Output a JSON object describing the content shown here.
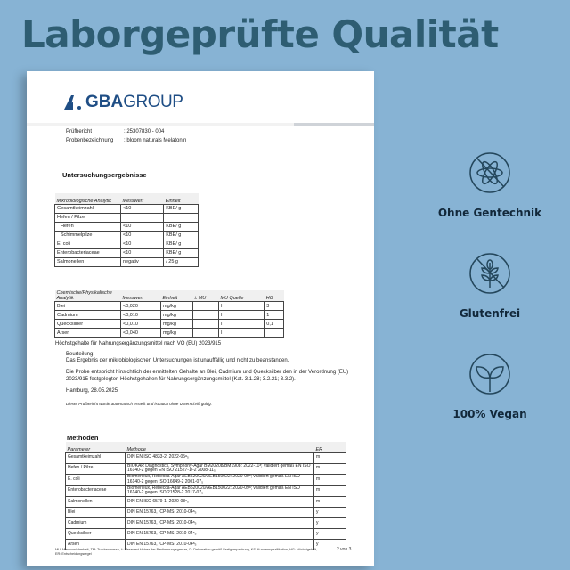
{
  "title": "Laborgeprüfte Qualität",
  "document": {
    "logo": {
      "bold": "GBA",
      "rest": "GROUP"
    },
    "pruefbericht_label": "Prüfbericht",
    "pruefbericht_value": ": 25307830 - 004",
    "probe_label": "Probenbezeichnung",
    "probe_value": ": bloom naturals Melatonin",
    "section_title": "Untersuchungsergebnisse",
    "micro_table": {
      "headers": [
        "Mikrobiologische Analytik",
        "Messwert",
        "Einheit"
      ],
      "rows": [
        [
          "Gesamtkeimzahl",
          "<10",
          "KBE/ g"
        ],
        [
          "Hefen / Pilze",
          "",
          ""
        ],
        [
          "  Hefen",
          "<10",
          "KBE/ g"
        ],
        [
          "  Schimmelpilze",
          "<10",
          "KBE/ g"
        ],
        [
          "E. coli",
          "<10",
          "KBE/ g"
        ],
        [
          "Enterobacteriaceae",
          "<10",
          "KBE/ g"
        ],
        [
          "Salmonellen",
          "negativ",
          "/ 25 g"
        ]
      ]
    },
    "chem_table": {
      "headers": [
        "Chemische/Physikalische Analytik",
        "Messwert",
        "Einheit",
        "± MU",
        "MU Quelle",
        "HG"
      ],
      "rows": [
        [
          "Blei",
          "<0,020",
          "mg/kg",
          "",
          "I",
          "3"
        ],
        [
          "Cadmium",
          "<0,010",
          "mg/kg",
          "",
          "I",
          "1"
        ],
        [
          "Quecksilber",
          "<0,010",
          "mg/kg",
          "",
          "I",
          "0,1"
        ],
        [
          "Arsen",
          "<0,040",
          "mg/kg",
          "",
          "I",
          ""
        ]
      ]
    },
    "hg_note": "Höchstgehalte für Nahrungsergänzungsmittel nach VO (EU) 2023/915",
    "beurteilung_label": "Beurteilung:",
    "beurteilung_text": "Das Ergebnis der mikrobiologischen Untersuchungen ist unauffällig und nicht zu beanstanden.",
    "probe_text": "Die Probe entspricht hinsichtlich der ermittelten Gehalte an Blei, Cadmium und Quecksilber den in der Verordnung (EU) 2023/915 festgelegten Höchstgehalten für Nahrungsergänzungsmittel (Kat. 3.1.28; 3.2.21; 3.3.2).",
    "place_date": "Hamburg, 28.05.2025",
    "auto_note": "Dieser Prüfbericht wurde automatisch erstellt und ist auch ohne Unterschrift gültig.",
    "methods_title": "Methoden",
    "methods_table": {
      "headers": [
        "Parameter",
        "Methode",
        "ER"
      ],
      "rows": [
        [
          "Gesamtkeimzahl",
          "DIN EN ISO 4833-2: 2022-05ᵃ₅",
          "m"
        ],
        [
          "Hefen / Pilze",
          "BIOKAR Diagnostics, Symphony-Agar BM20208/BM1908: 2022-11ᵃ; validiert gemäß EN ISO 16140-2 gegen EN ISO 21527-1/-2 2008-11₅",
          "m"
        ],
        [
          "E. coli",
          "Biomerieux, Rebecca-Agar AEB520020/AEB150022: 2020-09ᵃ; validiert gemäß EN ISO 16140-2 gegen ISO 16649-2 2001-07₅",
          "m"
        ],
        [
          "Enterobacteriaceae",
          "Biomerieux, Rebecca-Agar AEB520020/AEB150022: 2020-09ᵃ; validiert gemäß EN ISO 16140-2 gegen ISO 21528-2 2017-07₅",
          "m"
        ],
        [
          "Salmonellen",
          "DIN EN ISO 6579-1: 2020-08ᵃ₅",
          "m"
        ],
        [
          "Blei",
          "DIN EN 15763, ICP-MS: 2010-04ᵃ₅",
          "y"
        ],
        [
          "Cadmium",
          "DIN EN 15763, ICP-MS: 2010-04ᵃ₅",
          "y"
        ],
        [
          "Quecksilber",
          "DIN EN 15763, ICP-MS: 2010-04ᵃ₅",
          "y"
        ],
        [
          "Arsen",
          "DIN EN 15763, ICP-MS: 2010-04ᵃ₅",
          "y"
        ]
      ]
    },
    "footer_text": "MU: Messunsicherheit, TM: Trockenmasse, *: Messwert kleiner der Bestimmungsgrenze, D: Deklaration gemäß Fertigverpackung, KS: Kundenspezifikation, HG: Höchstgehalt, ER: Entscheidungsregel",
    "page": "2 von 3"
  },
  "features": [
    {
      "icon": "no-gmo-icon",
      "label": "Ohne Gentechnik"
    },
    {
      "icon": "gluten-free-icon",
      "label": "Glutenfrei"
    },
    {
      "icon": "vegan-leaf-icon",
      "label": "100% Vegan"
    }
  ],
  "colors": {
    "background": "#87b3d4",
    "title": "#2e5d72",
    "logo": "#1f4e85",
    "icon": "#24475c"
  }
}
